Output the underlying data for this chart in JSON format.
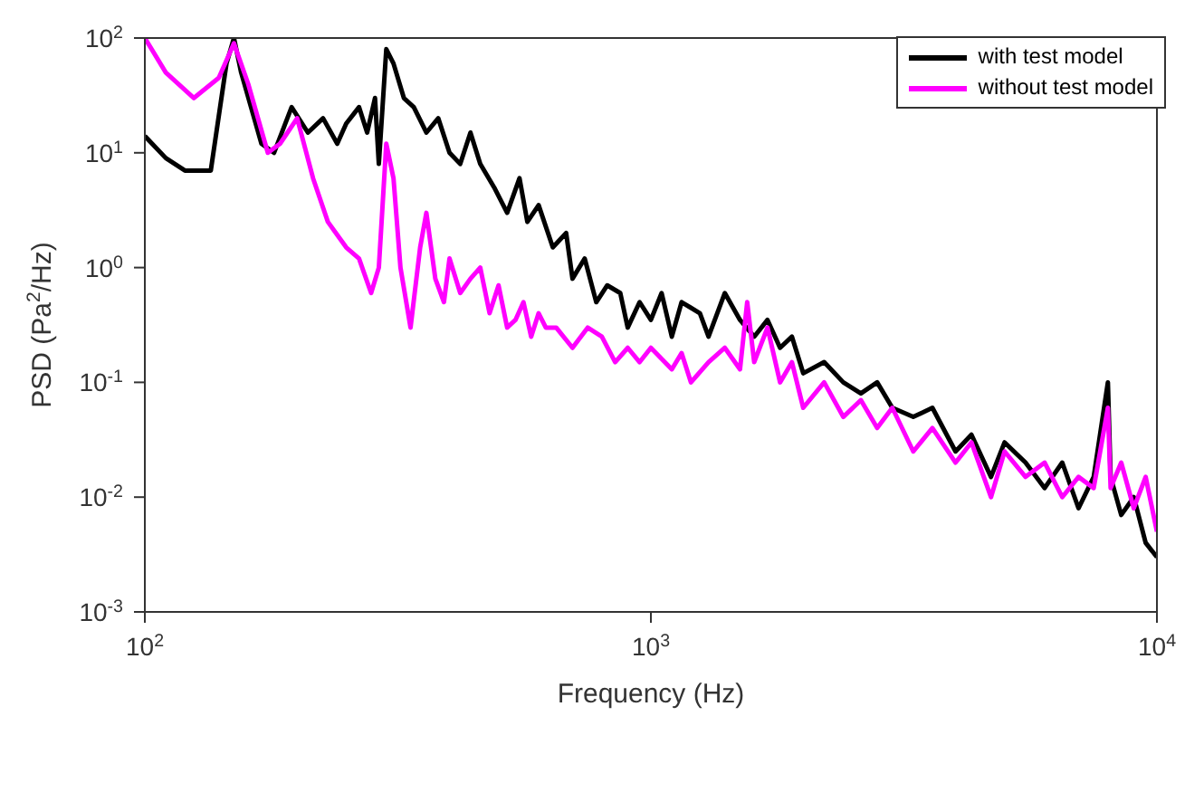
{
  "chart_data": {
    "type": "line",
    "xlabel": "Frequency (Hz)",
    "ylabel": "PSD (Pa$^{2}$/Hz)",
    "log": "xy",
    "grid": false,
    "legend": "top right",
    "line_style": "solid",
    "marker": "none",
    "xlim": [
      100,
      10000
    ],
    "xticks": [
      {
        "value": 100,
        "label": "10$^{2}$"
      },
      {
        "value": 1000,
        "label": "10$^{3}$"
      },
      {
        "value": 10000,
        "label": "10$^{4}$"
      }
    ],
    "ylim": [
      0.001,
      100
    ],
    "yticks": [
      {
        "value": 0.001,
        "label": "10$^{-3}$"
      },
      {
        "value": 0.01,
        "label": "10$^{-2}$"
      },
      {
        "value": 0.1,
        "label": "10$^{-1}$"
      },
      {
        "value": 1,
        "label": "10$^{0}$"
      },
      {
        "value": 10,
        "label": "10$^{1}$"
      },
      {
        "value": 100,
        "label": "10$^{2}$"
      }
    ],
    "series": [
      {
        "name": "with test model",
        "color": "#000000",
        "x": [
          100,
          110,
          120,
          135,
          145,
          150,
          155,
          170,
          180,
          195,
          210,
          225,
          240,
          250,
          265,
          275,
          285,
          290,
          300,
          310,
          325,
          340,
          360,
          380,
          400,
          420,
          440,
          460,
          490,
          520,
          550,
          570,
          600,
          640,
          680,
          700,
          740,
          780,
          820,
          870,
          900,
          950,
          1000,
          1050,
          1100,
          1150,
          1250,
          1300,
          1400,
          1500,
          1600,
          1700,
          1800,
          1900,
          2000,
          2200,
          2400,
          2600,
          2800,
          3000,
          3300,
          3600,
          4000,
          4300,
          4700,
          5000,
          5500,
          6000,
          6500,
          7000,
          7500,
          8000,
          8100,
          8500,
          9000,
          9500,
          10000
        ],
        "values": [
          14,
          9,
          7,
          7,
          60,
          100,
          50,
          12,
          10,
          25,
          15,
          20,
          12,
          18,
          25,
          15,
          30,
          8,
          80,
          60,
          30,
          25,
          15,
          20,
          10,
          8,
          15,
          8,
          5,
          3,
          6,
          2.5,
          3.5,
          1.5,
          2,
          0.8,
          1.2,
          0.5,
          0.7,
          0.6,
          0.3,
          0.5,
          0.35,
          0.6,
          0.25,
          0.5,
          0.4,
          0.25,
          0.6,
          0.35,
          0.25,
          0.35,
          0.2,
          0.25,
          0.12,
          0.15,
          0.1,
          0.08,
          0.1,
          0.06,
          0.05,
          0.06,
          0.025,
          0.035,
          0.015,
          0.03,
          0.02,
          0.012,
          0.02,
          0.008,
          0.015,
          0.1,
          0.015,
          0.007,
          0.01,
          0.004,
          0.003
        ]
      },
      {
        "name": "without test model",
        "color": "#ff00ff",
        "x": [
          100,
          110,
          125,
          140,
          150,
          160,
          175,
          185,
          200,
          215,
          230,
          250,
          265,
          280,
          290,
          300,
          310,
          320,
          335,
          350,
          360,
          375,
          390,
          400,
          420,
          440,
          460,
          480,
          500,
          520,
          540,
          560,
          580,
          600,
          620,
          650,
          700,
          750,
          800,
          850,
          900,
          950,
          1000,
          1100,
          1150,
          1200,
          1300,
          1400,
          1500,
          1550,
          1600,
          1700,
          1800,
          1900,
          2000,
          2200,
          2400,
          2600,
          2800,
          3000,
          3300,
          3600,
          4000,
          4300,
          4700,
          5000,
          5500,
          6000,
          6500,
          7000,
          7500,
          8000,
          8100,
          8500,
          9000,
          9500,
          10000
        ],
        "values": [
          100,
          50,
          30,
          45,
          90,
          40,
          10,
          12,
          20,
          6,
          2.5,
          1.5,
          1.2,
          0.6,
          1,
          12,
          6,
          1,
          0.3,
          1.5,
          3,
          0.8,
          0.5,
          1.2,
          0.6,
          0.8,
          1,
          0.4,
          0.7,
          0.3,
          0.35,
          0.5,
          0.25,
          0.4,
          0.3,
          0.3,
          0.2,
          0.3,
          0.25,
          0.15,
          0.2,
          0.15,
          0.2,
          0.13,
          0.18,
          0.1,
          0.15,
          0.2,
          0.13,
          0.5,
          0.15,
          0.3,
          0.1,
          0.15,
          0.06,
          0.1,
          0.05,
          0.07,
          0.04,
          0.06,
          0.025,
          0.04,
          0.02,
          0.03,
          0.01,
          0.025,
          0.015,
          0.02,
          0.01,
          0.015,
          0.012,
          0.06,
          0.012,
          0.02,
          0.008,
          0.015,
          0.005
        ]
      }
    ]
  }
}
